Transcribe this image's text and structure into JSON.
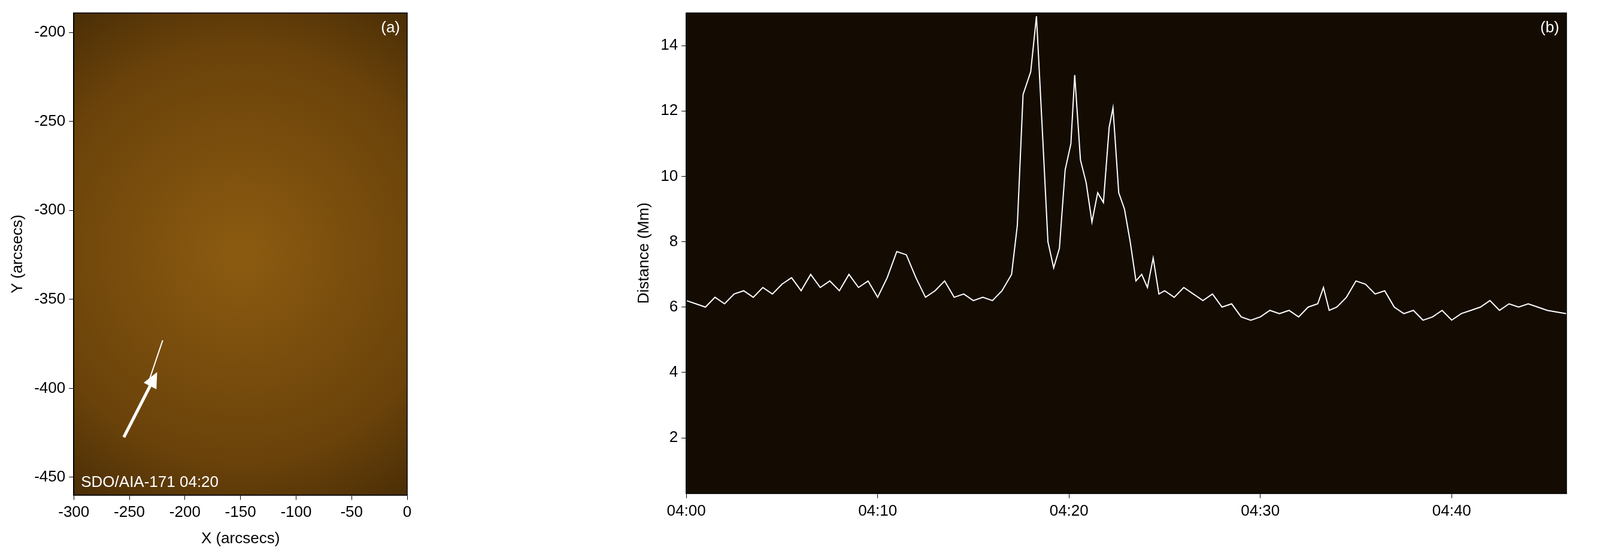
{
  "chart_data": [
    {
      "type": "image",
      "title": "(a)",
      "annotation": "SDO/AIA-171 04:20",
      "x_label": "X (arcsecs)",
      "y_label": "Y (arcsecs)",
      "xlim": [
        -300,
        0
      ],
      "xticks": [
        -300,
        -250,
        -200,
        -150,
        -100,
        -50,
        0
      ],
      "ylim": [
        -460,
        -189
      ],
      "yticks": [
        -450,
        -400,
        -350,
        -300,
        -250,
        -200
      ],
      "slit": {
        "x": [
          -233,
          -220
        ],
        "y": [
          -397,
          -373
        ]
      },
      "color": "#ffffff"
    },
    {
      "type": "line",
      "title": "(b)",
      "y_label": "Distance (Mm)",
      "xlim": [
        0,
        46
      ],
      "xticks": [
        {
          "value": 0,
          "label": "04:00"
        },
        {
          "value": 10,
          "label": "04:10"
        },
        {
          "value": 20,
          "label": "04:20"
        },
        {
          "value": 30,
          "label": "04:30"
        },
        {
          "value": 40,
          "label": "04:40"
        }
      ],
      "ylim": [
        0.3,
        15
      ],
      "yticks": [
        2,
        4,
        6,
        8,
        10,
        12,
        14
      ],
      "color": "#ffffff",
      "x": [
        0,
        0.5,
        1,
        1.5,
        2,
        2.5,
        3,
        3.5,
        4,
        4.5,
        5,
        5.5,
        6,
        6.5,
        7,
        7.5,
        8,
        8.5,
        9,
        9.5,
        10,
        10.5,
        11,
        11.5,
        12,
        12.5,
        13,
        13.5,
        14,
        14.5,
        15,
        15.5,
        16,
        16.5,
        17,
        17.3,
        17.6,
        18.0,
        18.3,
        18.6,
        18.9,
        19.2,
        19.5,
        19.8,
        20.1,
        20.3,
        20.6,
        20.9,
        21.2,
        21.5,
        21.8,
        22.1,
        22.3,
        22.6,
        22.9,
        23.2,
        23.5,
        23.8,
        24.1,
        24.4,
        24.7,
        25,
        25.5,
        26,
        26.5,
        27,
        27.5,
        28,
        28.5,
        29,
        29.5,
        30,
        30.5,
        31,
        31.5,
        32,
        32.5,
        33,
        33.3,
        33.6,
        34,
        34.5,
        35,
        35.5,
        36,
        36.5,
        37,
        37.5,
        38,
        38.5,
        39,
        39.5,
        40,
        40.5,
        41,
        41.5,
        42,
        42.5,
        43,
        43.5,
        44,
        44.5,
        45,
        46
      ],
      "values": [
        6.2,
        6.1,
        6.0,
        6.3,
        6.1,
        6.4,
        6.5,
        6.3,
        6.6,
        6.4,
        6.7,
        6.9,
        6.5,
        7.0,
        6.6,
        6.8,
        6.5,
        7.0,
        6.6,
        6.8,
        6.3,
        6.9,
        7.7,
        7.6,
        6.9,
        6.3,
        6.5,
        6.8,
        6.3,
        6.4,
        6.2,
        6.3,
        6.2,
        6.5,
        7.0,
        8.5,
        12.5,
        13.2,
        14.9,
        11.5,
        8.0,
        7.2,
        7.8,
        10.2,
        11.0,
        13.1,
        10.5,
        9.8,
        8.6,
        9.5,
        9.2,
        11.5,
        12.1,
        9.5,
        9.0,
        8.0,
        6.8,
        7.0,
        6.6,
        7.5,
        6.4,
        6.5,
        6.3,
        6.6,
        6.4,
        6.2,
        6.4,
        6.0,
        6.1,
        5.7,
        5.6,
        5.7,
        5.9,
        5.8,
        5.9,
        5.7,
        6.0,
        6.1,
        6.6,
        5.9,
        6.0,
        6.3,
        6.8,
        6.7,
        6.4,
        6.5,
        6.0,
        5.8,
        5.9,
        5.6,
        5.7,
        5.9,
        5.6,
        5.8,
        5.9,
        6.0,
        6.2,
        5.9,
        6.1,
        6.0,
        6.1,
        6.0,
        5.9,
        5.8
      ]
    }
  ]
}
